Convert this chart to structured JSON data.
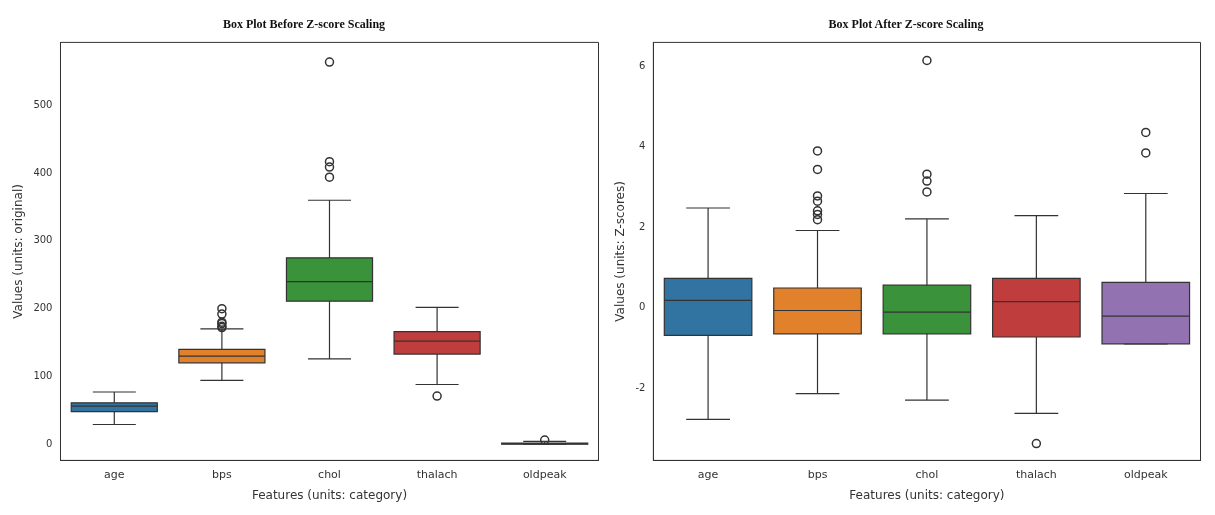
{
  "chart_data": [
    {
      "type": "box",
      "title": "Box Plot Before Z-score Scaling",
      "xlabel": "Features (units: category)",
      "ylabel": "Values (units: original)",
      "categories": [
        "age",
        "bps",
        "chol",
        "thalach",
        "oldpeak"
      ],
      "colors": [
        "#3274a1",
        "#e1812c",
        "#3a923a",
        "#c03d3e",
        "#9372b2"
      ],
      "boxes": [
        {
          "low": 29,
          "q1": 48,
          "median": 56,
          "q3": 61,
          "high": 77
        },
        {
          "low": 94,
          "q1": 120,
          "median": 130,
          "q3": 140,
          "high": 170,
          "outliers": [
            172,
            174,
            178,
            180,
            192,
            200
          ]
        },
        {
          "low": 126,
          "q1": 211,
          "median": 240,
          "q3": 275,
          "high": 360,
          "outliers": [
            394,
            409,
            417,
            564
          ]
        },
        {
          "low": 88,
          "q1": 133,
          "median": 152,
          "q3": 166,
          "high": 202,
          "outliers": [
            71
          ]
        },
        {
          "low": 0,
          "q1": 0,
          "median": 0.8,
          "q3": 1.6,
          "high": 4,
          "outliers": [
            6
          ]
        }
      ],
      "ylim": [
        -24,
        593
      ],
      "yticks": [
        0,
        100,
        200,
        300,
        400,
        500
      ]
    },
    {
      "type": "box",
      "title": "Box Plot After Z-score Scaling",
      "xlabel": "Features (units: category)",
      "ylabel": "Values (units: Z-scores)",
      "categories": [
        "age",
        "bps",
        "chol",
        "thalach",
        "oldpeak"
      ],
      "colors": [
        "#3274a1",
        "#e1812c",
        "#3a923a",
        "#c03d3e",
        "#9372b2"
      ],
      "boxes": [
        {
          "low": -2.78,
          "q1": -0.69,
          "median": 0.18,
          "q3": 0.73,
          "high": 2.48
        },
        {
          "low": -2.14,
          "q1": -0.65,
          "median": -0.07,
          "q3": 0.49,
          "high": 1.92,
          "outliers": [
            2.19,
            2.32,
            2.41,
            2.65,
            2.78,
            3.44,
            3.9
          ]
        },
        {
          "low": -2.3,
          "q1": -0.65,
          "median": -0.11,
          "q3": 0.56,
          "high": 2.21,
          "outliers": [
            2.88,
            3.15,
            3.32,
            6.15
          ]
        },
        {
          "low": -2.63,
          "q1": -0.73,
          "median": 0.15,
          "q3": 0.73,
          "high": 2.29,
          "outliers": [
            -3.38
          ]
        },
        {
          "low": -0.9,
          "q1": -0.9,
          "median": -0.21,
          "q3": 0.63,
          "high": 2.84,
          "outliers": [
            3.85,
            4.36
          ]
        }
      ],
      "ylim": [
        -3.8,
        6.6
      ],
      "yticks": [
        -2,
        0,
        2,
        4,
        6
      ]
    }
  ]
}
